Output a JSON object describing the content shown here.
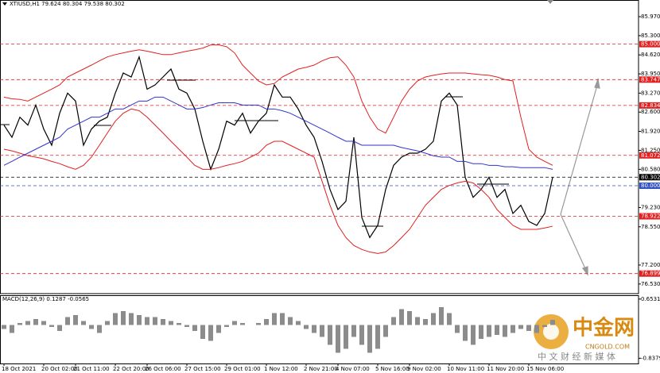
{
  "chart_data": [
    {
      "type": "line",
      "title": "XTIUSD,H1 79.624 80.304 79.538 80.302",
      "categories": [
        "18 Oct 2021",
        null,
        null,
        null,
        null,
        "20 Oct 02:00",
        null,
        null,
        null,
        "21 Oct 11:00",
        null,
        null,
        null,
        null,
        "22 Oct 20:00",
        null,
        null,
        null,
        "26 Oct 06:00",
        null,
        null,
        null,
        null,
        "27 Oct 15:00",
        null,
        null,
        null,
        null,
        "29 Oct 01:00",
        null,
        null,
        null,
        null,
        "1 Nov 12:00",
        null,
        null,
        null,
        null,
        "2 Nov 21:00",
        null,
        null,
        null,
        "4 Nov 07:00",
        null,
        null,
        null,
        null,
        "5 Nov 16:00",
        null,
        null,
        null,
        "9 Nov 02:00",
        null,
        null,
        null,
        null,
        "10 Nov 11:00",
        null,
        null,
        null,
        null,
        "11 Nov 20:00",
        null,
        null,
        null,
        null,
        "15 Nov 06:00",
        null,
        null,
        null
      ],
      "series": [
        {
          "color": "#000000",
          "values": [
            82.14,
            81.71,
            82.42,
            82.14,
            82.85,
            82.0,
            81.43,
            82.56,
            83.27,
            82.99,
            81.43,
            82.0,
            82.28,
            82.42,
            83.27,
            83.98,
            83.84,
            84.55,
            83.41,
            83.56,
            83.84,
            84.12,
            83.41,
            83.27,
            82.71,
            81.57,
            80.58,
            81.29,
            82.28,
            82.14,
            82.56,
            81.86,
            82.28,
            82.56,
            83.56,
            83.13,
            83.13,
            82.71,
            82.14,
            81.71,
            80.86,
            79.87,
            79.16,
            79.45,
            81.71,
            78.88,
            78.17,
            78.6,
            79.87,
            80.72,
            81.01,
            81.15,
            81.15,
            81.29,
            81.57,
            82.99,
            83.27,
            82.85,
            80.3,
            79.59,
            79.87,
            80.3,
            79.59,
            79.87,
            79.02,
            79.31,
            78.74,
            78.6,
            79.02,
            80.3
          ]
        },
        {
          "color": "#e02020",
          "values": [
            83.13,
            83.07,
            83.05,
            82.99,
            83.13,
            83.27,
            83.41,
            83.56,
            83.84,
            83.98,
            84.12,
            84.26,
            84.41,
            84.55,
            84.63,
            84.69,
            84.75,
            84.8,
            84.75,
            84.69,
            84.63,
            84.63,
            84.69,
            84.75,
            84.8,
            84.86,
            84.97,
            84.97,
            84.91,
            84.69,
            84.26,
            83.98,
            83.7,
            83.56,
            83.61,
            83.84,
            83.98,
            84.12,
            84.18,
            84.26,
            84.41,
            84.52,
            84.55,
            84.26,
            83.84,
            82.99,
            82.42,
            82.0,
            81.86,
            82.42,
            82.99,
            83.41,
            83.7,
            83.84,
            83.9,
            83.95,
            83.98,
            83.98,
            83.98,
            83.95,
            83.92,
            83.9,
            83.84,
            83.75,
            83.7,
            82.42,
            81.29,
            81.01,
            80.86,
            80.72
          ]
        },
        {
          "color": "#e02020",
          "values": [
            81.29,
            81.23,
            81.15,
            81.06,
            81.01,
            80.95,
            80.86,
            80.78,
            80.67,
            80.58,
            80.72,
            81.01,
            81.43,
            81.86,
            82.28,
            82.56,
            82.71,
            82.65,
            82.42,
            82.14,
            81.86,
            81.57,
            81.29,
            81.01,
            80.72,
            80.58,
            80.58,
            80.64,
            80.72,
            80.78,
            80.86,
            81.01,
            81.15,
            81.43,
            81.57,
            81.57,
            81.43,
            81.29,
            81.15,
            81.01,
            80.16,
            79.31,
            78.6,
            78.17,
            77.89,
            77.75,
            77.66,
            77.61,
            77.66,
            77.89,
            78.17,
            78.46,
            78.88,
            79.31,
            79.59,
            79.87,
            80.01,
            80.1,
            80.16,
            80.1,
            79.87,
            79.59,
            79.16,
            78.88,
            78.6,
            78.46,
            78.46,
            78.46,
            78.51,
            78.57
          ]
        },
        {
          "color": "#3333cc",
          "values": [
            80.72,
            80.86,
            81.01,
            81.15,
            81.29,
            81.43,
            81.57,
            81.71,
            82.0,
            82.14,
            82.28,
            82.42,
            82.42,
            82.56,
            82.71,
            82.71,
            82.85,
            82.99,
            82.99,
            83.13,
            83.13,
            82.99,
            82.85,
            82.71,
            82.71,
            82.76,
            82.85,
            82.93,
            82.93,
            82.93,
            82.85,
            82.85,
            82.85,
            82.71,
            82.71,
            82.65,
            82.56,
            82.42,
            82.28,
            82.14,
            82.0,
            81.86,
            81.71,
            81.57,
            81.57,
            81.43,
            81.43,
            81.43,
            81.43,
            81.43,
            81.35,
            81.29,
            81.23,
            81.15,
            81.06,
            81.01,
            81.01,
            80.86,
            80.86,
            80.78,
            80.78,
            80.72,
            80.72,
            80.67,
            80.67,
            80.64,
            80.64,
            80.64,
            80.64,
            80.58
          ]
        }
      ],
      "ylim": [
        76.19,
        86.53
      ],
      "yticks": [
        {
          "value": 85.97,
          "label": "85.970"
        },
        {
          "value": 85.3,
          "label": "85.300"
        },
        {
          "value": 84.62,
          "label": "84.620"
        },
        {
          "value": 83.95,
          "label": "83.950"
        },
        {
          "value": 83.27,
          "label": "83.270"
        },
        {
          "value": 82.6,
          "label": "82.600"
        },
        {
          "value": 81.92,
          "label": "81.920"
        },
        {
          "value": 81.25,
          "label": "81.250"
        },
        {
          "value": 80.58,
          "label": "80.580"
        },
        {
          "value": 79.23,
          "label": "79.230"
        },
        {
          "value": 78.55,
          "label": "78.550"
        },
        {
          "value": 77.2,
          "label": "77.200"
        },
        {
          "value": 76.53,
          "label": "76.530"
        }
      ],
      "levels": [
        {
          "value": 85,
          "label": "85.000",
          "color": "#e02020"
        },
        {
          "value": 83.747,
          "color": "#e02020"
        },
        {
          "value": 82.834,
          "color": "#e02020"
        },
        {
          "value": 81.072,
          "color": "#e02020"
        },
        {
          "value": 80.302,
          "color": "#000000"
        },
        {
          "value": 80,
          "label": "80.000",
          "color": "#3050c0"
        },
        {
          "value": 78.922,
          "color": "#e02020"
        },
        {
          "value": 76.899,
          "color": "#e02020"
        }
      ]
    },
    {
      "type": "bar",
      "title": "MACD(12,26,9) 0.1287 -0.0565",
      "color": "#8c8c8c",
      "values": [
        -0.1,
        -0.2,
        0.05,
        0.1,
        0.15,
        0.1,
        -0.05,
        -0.15,
        0.2,
        0.25,
        0.1,
        -0.1,
        -0.2,
        0.1,
        0.3,
        0.35,
        0.3,
        0.25,
        0.2,
        0.2,
        0.15,
        0.1,
        0.05,
        -0.05,
        -0.15,
        -0.35,
        -0.4,
        -0.2,
        -0.05,
        0.1,
        0.05,
        0.0,
        0.05,
        0.15,
        0.3,
        0.3,
        0.2,
        0.1,
        -0.1,
        -0.2,
        -0.3,
        -0.5,
        -0.7,
        -0.6,
        -0.3,
        -0.5,
        -0.7,
        -0.6,
        -0.3,
        0.2,
        0.4,
        0.35,
        0.2,
        0.15,
        0.3,
        0.45,
        0.3,
        -0.2,
        -0.4,
        -0.5,
        -0.35,
        -0.3,
        -0.25,
        -0.3,
        -0.2,
        -0.1,
        -0.15,
        -0.2,
        -0.05,
        0.13
      ],
      "ylim": [
        -0.97,
        0.73
      ],
      "yticks": [
        0.6531,
        -0.8379
      ]
    }
  ],
  "watermark": {
    "logo": "中金网",
    "site": "CNGOLD.COM",
    "tagline": "中 文 财 经 新 媒 体"
  }
}
